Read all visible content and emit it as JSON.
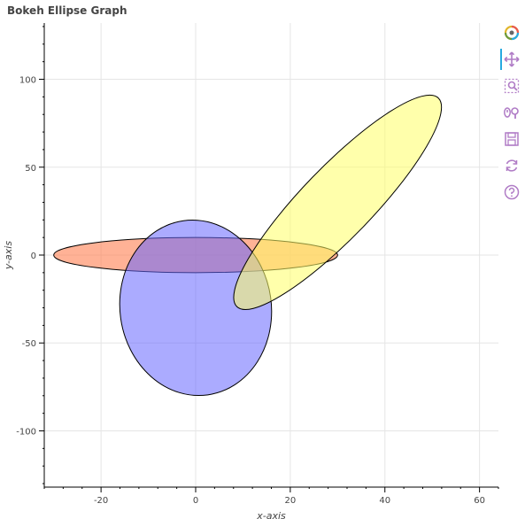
{
  "chart_data": {
    "type": "ellipse",
    "title": "Bokeh Ellipse Graph",
    "xlabel": "x-axis",
    "ylabel": "y-axis",
    "xlim": [
      -32,
      64
    ],
    "ylim": [
      -132,
      132
    ],
    "xticks": [
      -20,
      0,
      20,
      40,
      60
    ],
    "yticks": [
      -100,
      -50,
      0,
      50,
      100
    ],
    "grid": true,
    "ellipses": [
      {
        "x": 0,
        "y": 0,
        "width": 60,
        "height": 20,
        "angle_deg": 0,
        "fill": "#ff7f50",
        "fill_alpha": 0.6
      },
      {
        "x": 0,
        "y": -30,
        "width": 32,
        "height": 100,
        "angle_deg": 8,
        "fill": "#6666ff",
        "fill_alpha": 0.55
      },
      {
        "x": 30,
        "y": 30,
        "width": 15,
        "height": 165,
        "angle_deg": -44,
        "fill": "#ffff66",
        "fill_alpha": 0.55
      }
    ]
  },
  "toolbar": {
    "tools": [
      {
        "name": "bokeh-logo-icon"
      },
      {
        "name": "pan-icon"
      },
      {
        "name": "box-zoom-icon"
      },
      {
        "name": "wheel-zoom-icon"
      },
      {
        "name": "save-icon"
      },
      {
        "name": "reset-icon"
      },
      {
        "name": "help-icon"
      }
    ]
  }
}
